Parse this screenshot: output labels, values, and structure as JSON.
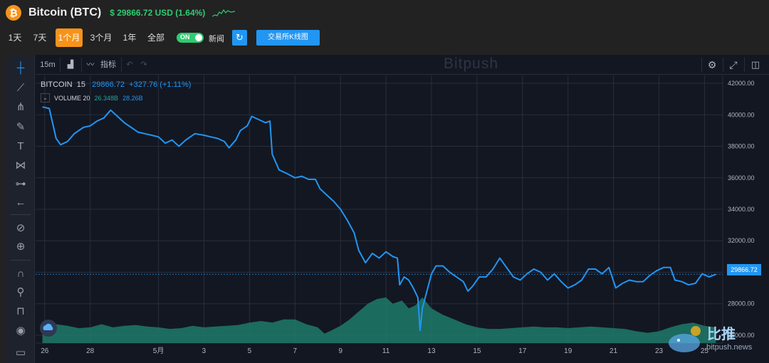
{
  "header": {
    "title": "Bitcoin (BTC)",
    "price_text": "$ 29866.72 USD (1.64%)",
    "btc_symbol": "₿"
  },
  "controls": {
    "ranges": [
      "1天",
      "7天",
      "1个月",
      "3个月",
      "1年",
      "全部"
    ],
    "active_range": "1个月",
    "toggle_label": "ON",
    "news_label": "新闻",
    "kline_label": "交易所K线图"
  },
  "toolbar": {
    "interval": "15m",
    "indicators_label": "指标",
    "watermark": "Bitpush"
  },
  "legend": {
    "symbol": "BITCOIN",
    "interval": "15",
    "price": "29866.72",
    "change": "+327.76 (+1.11%)",
    "volume_label": "VOLUME 20",
    "volume_1": "26.348B",
    "volume_2": "28.26B"
  },
  "brand": {
    "name_cn": "比推",
    "url_text": "bitpush.news"
  },
  "colors": {
    "price_line": "#2196f3",
    "volume_fill": "#1f7a6a",
    "background": "#131722",
    "accent": "#f7931a",
    "up": "#2ecc71"
  },
  "chart_data": {
    "type": "area",
    "title": "BITCOIN 15",
    "ylim": [
      25500,
      42500
    ],
    "y_ticks": [
      42000,
      40000,
      38000,
      36000,
      34000,
      32000,
      30000,
      28000,
      26000
    ],
    "y_tick_labels": [
      "42000.00",
      "40000.00",
      "38000.00",
      "36000.00",
      "34000.00",
      "32000.00",
      "30000.00",
      "28000.00",
      "26000.00"
    ],
    "x_tick_labels": [
      "26",
      "28",
      "5月",
      "3",
      "5",
      "7",
      "9",
      "11",
      "13",
      "15",
      "17",
      "19",
      "21",
      "23",
      "25"
    ],
    "x_tick_days": [
      0,
      2,
      5,
      7,
      9,
      11,
      13,
      15,
      17,
      19,
      21,
      23,
      25,
      27,
      29
    ],
    "last_price": 29866.72,
    "last_price_label": "29866.72",
    "grid": true,
    "series": [
      {
        "name": "BITCOIN",
        "kind": "line",
        "points": [
          [
            -0.1,
            40500
          ],
          [
            0.2,
            40400
          ],
          [
            0.5,
            38500
          ],
          [
            0.7,
            38100
          ],
          [
            1.0,
            38300
          ],
          [
            1.3,
            38800
          ],
          [
            1.7,
            39200
          ],
          [
            2.0,
            39300
          ],
          [
            2.3,
            39600
          ],
          [
            2.6,
            39800
          ],
          [
            2.9,
            40300
          ],
          [
            3.2,
            39900
          ],
          [
            3.5,
            39500
          ],
          [
            3.8,
            39200
          ],
          [
            4.1,
            38900
          ],
          [
            4.4,
            38800
          ],
          [
            4.7,
            38700
          ],
          [
            5.0,
            38600
          ],
          [
            5.3,
            38200
          ],
          [
            5.6,
            38400
          ],
          [
            5.9,
            38000
          ],
          [
            6.2,
            38400
          ],
          [
            6.6,
            38800
          ],
          [
            7.0,
            38700
          ],
          [
            7.3,
            38600
          ],
          [
            7.6,
            38500
          ],
          [
            7.9,
            38300
          ],
          [
            8.1,
            37900
          ],
          [
            8.4,
            38400
          ],
          [
            8.6,
            39000
          ],
          [
            8.9,
            39300
          ],
          [
            9.1,
            39900
          ],
          [
            9.4,
            39700
          ],
          [
            9.7,
            39500
          ],
          [
            9.9,
            39600
          ],
          [
            10.0,
            37500
          ],
          [
            10.3,
            36500
          ],
          [
            10.6,
            36300
          ],
          [
            11.0,
            36000
          ],
          [
            11.3,
            36100
          ],
          [
            11.6,
            35900
          ],
          [
            11.9,
            35900
          ],
          [
            12.1,
            35300
          ],
          [
            12.4,
            34900
          ],
          [
            12.7,
            34500
          ],
          [
            13.0,
            34000
          ],
          [
            13.3,
            33300
          ],
          [
            13.6,
            32500
          ],
          [
            13.8,
            31400
          ],
          [
            14.1,
            30600
          ],
          [
            14.4,
            31200
          ],
          [
            14.7,
            30900
          ],
          [
            15.0,
            31300
          ],
          [
            15.3,
            31000
          ],
          [
            15.5,
            30900
          ],
          [
            15.6,
            29200
          ],
          [
            15.8,
            29700
          ],
          [
            16.0,
            29500
          ],
          [
            16.2,
            29000
          ],
          [
            16.4,
            28400
          ],
          [
            16.5,
            26300
          ],
          [
            16.6,
            27700
          ],
          [
            16.8,
            28800
          ],
          [
            17.0,
            29900
          ],
          [
            17.2,
            30400
          ],
          [
            17.5,
            30400
          ],
          [
            17.8,
            30000
          ],
          [
            18.1,
            29700
          ],
          [
            18.4,
            29400
          ],
          [
            18.6,
            28800
          ],
          [
            18.8,
            29100
          ],
          [
            19.1,
            29700
          ],
          [
            19.4,
            29700
          ],
          [
            19.7,
            30200
          ],
          [
            20.0,
            30900
          ],
          [
            20.3,
            30300
          ],
          [
            20.6,
            29700
          ],
          [
            20.9,
            29500
          ],
          [
            21.2,
            29900
          ],
          [
            21.5,
            30200
          ],
          [
            21.8,
            30000
          ],
          [
            22.1,
            29500
          ],
          [
            22.4,
            29900
          ],
          [
            22.7,
            29400
          ],
          [
            23.0,
            29000
          ],
          [
            23.3,
            29200
          ],
          [
            23.6,
            29500
          ],
          [
            23.9,
            30200
          ],
          [
            24.2,
            30200
          ],
          [
            24.5,
            29900
          ],
          [
            24.8,
            30300
          ],
          [
            25.1,
            29000
          ],
          [
            25.4,
            29300
          ],
          [
            25.7,
            29500
          ],
          [
            26.0,
            29400
          ],
          [
            26.3,
            29400
          ],
          [
            26.6,
            29800
          ],
          [
            26.9,
            30100
          ],
          [
            27.2,
            30300
          ],
          [
            27.5,
            30300
          ],
          [
            27.7,
            29500
          ],
          [
            28.0,
            29400
          ],
          [
            28.3,
            29200
          ],
          [
            28.6,
            29300
          ],
          [
            28.9,
            29900
          ],
          [
            29.2,
            29700
          ],
          [
            29.5,
            29866
          ]
        ]
      },
      {
        "name": "VOLUME 20",
        "kind": "area",
        "points": [
          [
            -0.1,
            26500
          ],
          [
            0.5,
            26700
          ],
          [
            1.0,
            26600
          ],
          [
            1.5,
            26450
          ],
          [
            2.0,
            26500
          ],
          [
            2.5,
            26700
          ],
          [
            3.0,
            26500
          ],
          [
            3.5,
            26600
          ],
          [
            4.0,
            26650
          ],
          [
            4.5,
            26550
          ],
          [
            5.0,
            26500
          ],
          [
            5.5,
            26400
          ],
          [
            6.0,
            26450
          ],
          [
            6.5,
            26600
          ],
          [
            7.0,
            26500
          ],
          [
            7.5,
            26550
          ],
          [
            8.0,
            26600
          ],
          [
            8.5,
            26650
          ],
          [
            9.0,
            26800
          ],
          [
            9.5,
            26900
          ],
          [
            10.0,
            26800
          ],
          [
            10.5,
            27000
          ],
          [
            11.0,
            27000
          ],
          [
            11.5,
            26700
          ],
          [
            12.0,
            26500
          ],
          [
            12.3,
            26100
          ],
          [
            12.6,
            26300
          ],
          [
            13.0,
            26600
          ],
          [
            13.4,
            27000
          ],
          [
            13.8,
            27500
          ],
          [
            14.2,
            28000
          ],
          [
            14.6,
            28300
          ],
          [
            15.0,
            28400
          ],
          [
            15.3,
            28000
          ],
          [
            15.7,
            28200
          ],
          [
            16.0,
            27700
          ],
          [
            16.3,
            27900
          ],
          [
            16.6,
            28400
          ],
          [
            17.0,
            27700
          ],
          [
            17.5,
            27300
          ],
          [
            18.0,
            27000
          ],
          [
            18.5,
            26700
          ],
          [
            19.0,
            26500
          ],
          [
            19.5,
            26400
          ],
          [
            20.0,
            26400
          ],
          [
            20.5,
            26450
          ],
          [
            21.0,
            26500
          ],
          [
            21.5,
            26550
          ],
          [
            22.0,
            26500
          ],
          [
            22.5,
            26500
          ],
          [
            23.0,
            26450
          ],
          [
            23.5,
            26500
          ],
          [
            24.0,
            26550
          ],
          [
            24.5,
            26500
          ],
          [
            25.0,
            26450
          ],
          [
            25.5,
            26400
          ],
          [
            26.0,
            26250
          ],
          [
            26.5,
            26150
          ],
          [
            27.0,
            26250
          ],
          [
            27.5,
            26500
          ],
          [
            28.0,
            26700
          ],
          [
            28.5,
            26800
          ],
          [
            29.0,
            26600
          ],
          [
            29.5,
            26500
          ]
        ]
      }
    ]
  }
}
